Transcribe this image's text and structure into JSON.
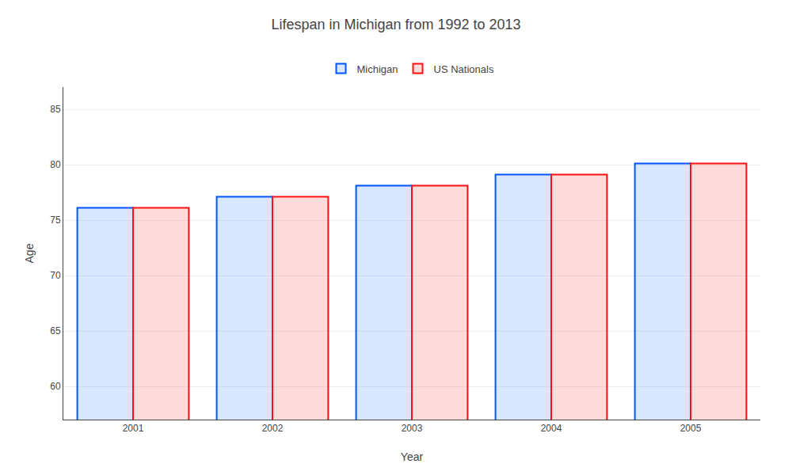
{
  "chart_data": {
    "type": "bar",
    "title": "Lifespan in Michigan from 1992 to 2013",
    "xlabel": "Year",
    "ylabel": "Age",
    "categories": [
      "2001",
      "2002",
      "2003",
      "2004",
      "2005"
    ],
    "series": [
      {
        "name": "Michigan",
        "color": "#0055ff",
        "values": [
          76.1,
          77.1,
          78.1,
          79.1,
          80.1
        ]
      },
      {
        "name": "US Nationals",
        "color": "#ff1111",
        "values": [
          76.1,
          77.1,
          78.1,
          79.1,
          80.1
        ]
      }
    ],
    "ylim": [
      57,
      87
    ],
    "yticks": [
      60,
      65,
      70,
      75,
      80,
      85
    ],
    "grid": true,
    "legend": "top"
  }
}
